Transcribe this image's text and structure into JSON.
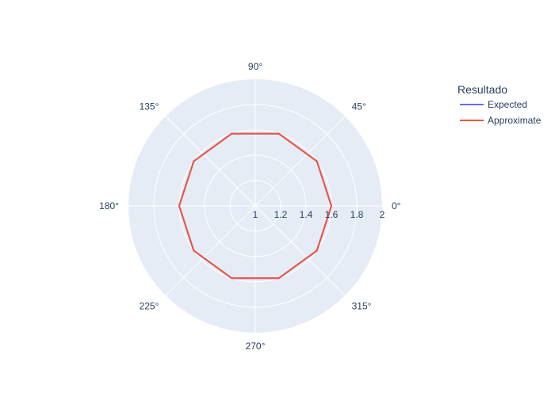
{
  "chart_data": {
    "type": "polar-line",
    "angular_axis": {
      "ticks": [
        0,
        45,
        90,
        135,
        180,
        225,
        270,
        315
      ],
      "tick_labels": [
        "0°",
        "45°",
        "90°",
        "135°",
        "180°",
        "225°",
        "270°",
        "315°"
      ]
    },
    "radial_axis": {
      "range": [
        1,
        2
      ],
      "ticks": [
        1,
        1.2,
        1.4,
        1.6,
        1.8,
        2
      ],
      "tick_labels": [
        "1",
        "1.2",
        "1.4",
        "1.6",
        "1.8",
        "2"
      ]
    },
    "theta": [
      0,
      36,
      72,
      108,
      144,
      180,
      216,
      252,
      288,
      324,
      360
    ],
    "series": [
      {
        "name": "Expected",
        "color": "#636efa",
        "r": [
          1.6,
          1.6,
          1.6,
          1.6,
          1.6,
          1.6,
          1.6,
          1.6,
          1.6,
          1.6,
          1.6
        ]
      },
      {
        "name": "Approximate",
        "color": "#ef553b",
        "r": [
          1.6,
          1.6,
          1.6,
          1.6,
          1.6,
          1.6,
          1.6,
          1.6,
          1.6,
          1.6,
          1.6
        ]
      }
    ],
    "legend": {
      "title": "Resultado",
      "position": "top-right"
    },
    "polar_background": "#e5ecf6",
    "grid": true
  }
}
